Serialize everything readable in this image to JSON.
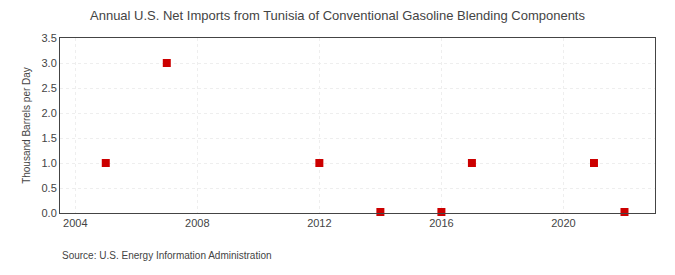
{
  "chart_data": {
    "type": "scatter",
    "title": "Annual U.S. Net Imports from Tunisia of Conventional Gasoline Blending Components",
    "ylabel": "Thousand Barrels per Day",
    "annotations": [
      "Source: U.S. Energy Information Administration"
    ],
    "x": [
      2005,
      2007,
      2012,
      2014,
      2016,
      2017,
      2021,
      2022
    ],
    "values": [
      1.0,
      3.0,
      1.0,
      0.02,
      0.02,
      1.0,
      1.0,
      0.02
    ],
    "color": "#cc0000",
    "marker": "square",
    "xlim": [
      2003.5,
      2023
    ],
    "xticks": [
      2004,
      2008,
      2012,
      2016,
      2020
    ],
    "ylim": [
      0.0,
      3.5
    ],
    "yticks": [
      {
        "value": 0.0,
        "label": "0.0"
      },
      0.5,
      {
        "value": 1.0,
        "label": "1.0"
      },
      1.5,
      {
        "value": 2.0,
        "label": "2.0"
      },
      2.5,
      {
        "value": 3.0,
        "label": "3.0"
      },
      3.5
    ],
    "grid": true
  }
}
